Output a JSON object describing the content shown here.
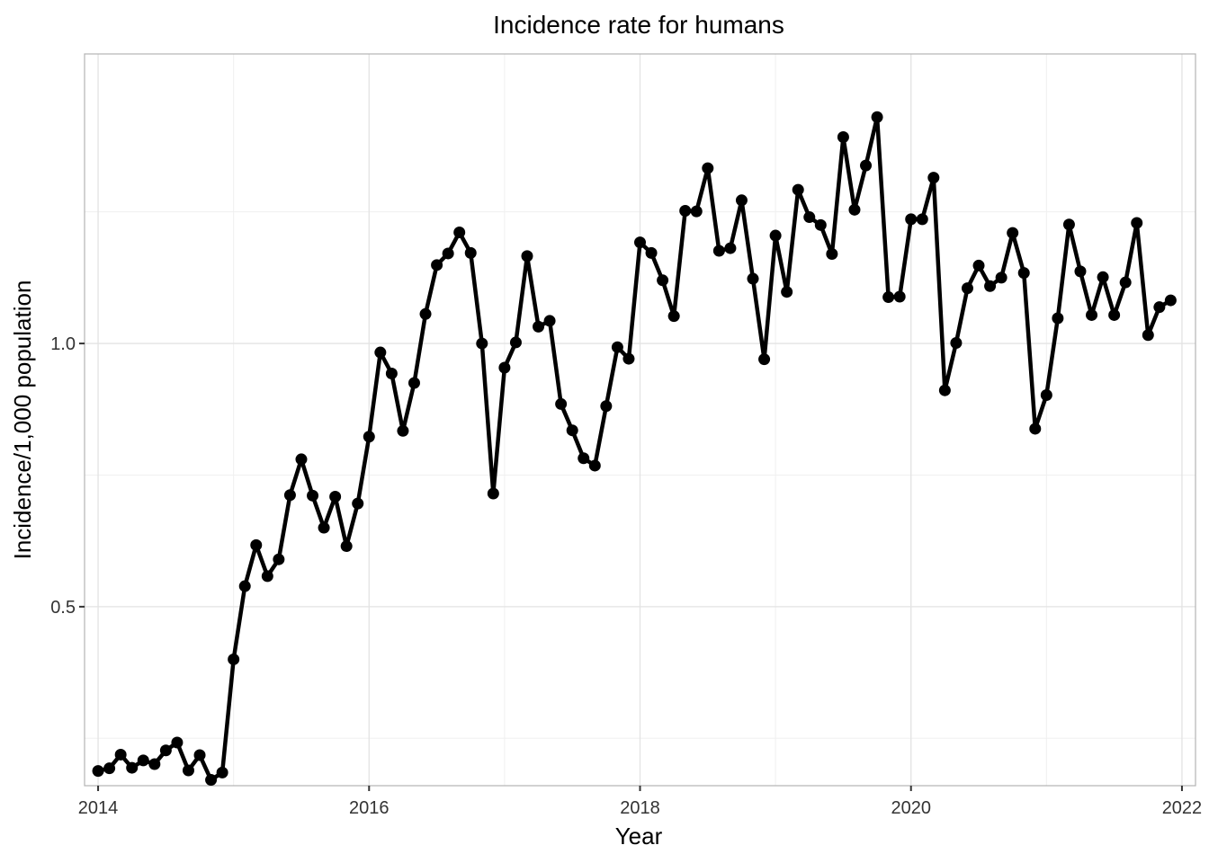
{
  "chart_data": {
    "type": "line",
    "title": "Incidence rate for humans",
    "xlabel": "Year",
    "ylabel": "Incidence/1,000 population",
    "xlim": [
      2013.9,
      2022.1
    ],
    "ylim": [
      0.16,
      1.55
    ],
    "x_ticks": [
      2014,
      2016,
      2018,
      2020,
      2022
    ],
    "x_tick_labels": [
      "2014",
      "2016",
      "2018",
      "2020",
      "2022"
    ],
    "y_ticks": [
      0.5,
      1.0
    ],
    "y_tick_labels": [
      "0.5",
      "1.0"
    ],
    "grid": true,
    "legend": "none",
    "line_color": "#000000",
    "series": [
      {
        "x": [
          "2014-01",
          "2014-02",
          "2014-03",
          "2014-04",
          "2014-05",
          "2014-06",
          "2014-07",
          "2014-08",
          "2014-09",
          "2014-10",
          "2014-11",
          "2014-12",
          "2015-01",
          "2015-02",
          "2015-03",
          "2015-04",
          "2015-05",
          "2015-06",
          "2015-07",
          "2015-08",
          "2015-09",
          "2015-10",
          "2015-11",
          "2015-12",
          "2016-01",
          "2016-02",
          "2016-03",
          "2016-04",
          "2016-05",
          "2016-06",
          "2016-07",
          "2016-08",
          "2016-09",
          "2016-10",
          "2016-11",
          "2016-12",
          "2017-01",
          "2017-02",
          "2017-03",
          "2017-04",
          "2017-05",
          "2017-06",
          "2017-07",
          "2017-08",
          "2017-09",
          "2017-10",
          "2017-11",
          "2017-12",
          "2018-01",
          "2018-02",
          "2018-03",
          "2018-04",
          "2018-05",
          "2018-06",
          "2018-07",
          "2018-08",
          "2018-09",
          "2018-10",
          "2018-11",
          "2018-12",
          "2019-01",
          "2019-02",
          "2019-03",
          "2019-04",
          "2019-05",
          "2019-06",
          "2019-07",
          "2019-08",
          "2019-09",
          "2019-10",
          "2019-11",
          "2019-12",
          "2020-01",
          "2020-02",
          "2020-03",
          "2020-04",
          "2020-05",
          "2020-06",
          "2020-07",
          "2020-08",
          "2020-09",
          "2020-10",
          "2020-11",
          "2020-12",
          "2021-01",
          "2021-02",
          "2021-03",
          "2021-04",
          "2021-05",
          "2021-06",
          "2021-07",
          "2021-08",
          "2021-09",
          "2021-10",
          "2021-11",
          "2021-12"
        ],
        "values": [
          0.188,
          0.193,
          0.219,
          0.194,
          0.208,
          0.201,
          0.227,
          0.242,
          0.189,
          0.218,
          0.171,
          0.185,
          0.4,
          0.539,
          0.617,
          0.558,
          0.59,
          0.712,
          0.78,
          0.711,
          0.65,
          0.709,
          0.615,
          0.696,
          0.823,
          0.983,
          0.943,
          0.834,
          0.925,
          1.056,
          1.149,
          1.171,
          1.211,
          1.172,
          1.0,
          0.715,
          0.954,
          1.002,
          1.166,
          1.032,
          1.043,
          0.885,
          0.835,
          0.782,
          0.768,
          0.881,
          0.993,
          0.971,
          1.192,
          1.172,
          1.12,
          1.052,
          1.252,
          1.251,
          1.333,
          1.176,
          1.181,
          1.272,
          1.123,
          0.97,
          1.205,
          1.098,
          1.292,
          1.24,
          1.225,
          1.17,
          1.392,
          1.254,
          1.338,
          1.43,
          1.088,
          1.089,
          1.236,
          1.236,
          1.315,
          0.911,
          1.001,
          1.105,
          1.148,
          1.109,
          1.125,
          1.21,
          1.134,
          0.838,
          0.902,
          1.048,
          1.226,
          1.137,
          1.054,
          1.126,
          1.054,
          1.116,
          1.229,
          1.016,
          1.069,
          1.082
        ]
      }
    ]
  }
}
